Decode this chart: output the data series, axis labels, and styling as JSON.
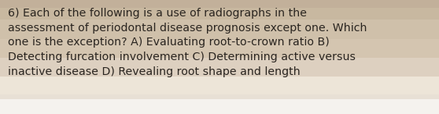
{
  "text": "6) Each of the following is a use of radiographs in the\nassessment of periodontal disease prognosis except one. Which\none is the exception? A) Evaluating root-to-crown ratio B)\nDetecting furcation involvement C) Determining active versus\ninactive disease D) Revealing root shape and length",
  "stripe_colors": [
    "#f0ebe3",
    "#e8ddd0",
    "#ddd0c0",
    "#d4c5b2",
    "#cfc0aa",
    "#c9b9a3",
    "#c5b49e"
  ],
  "text_color": "#2a2520",
  "font_size": 10.2,
  "fig_width": 5.58,
  "fig_height": 1.46,
  "dpi": 100
}
